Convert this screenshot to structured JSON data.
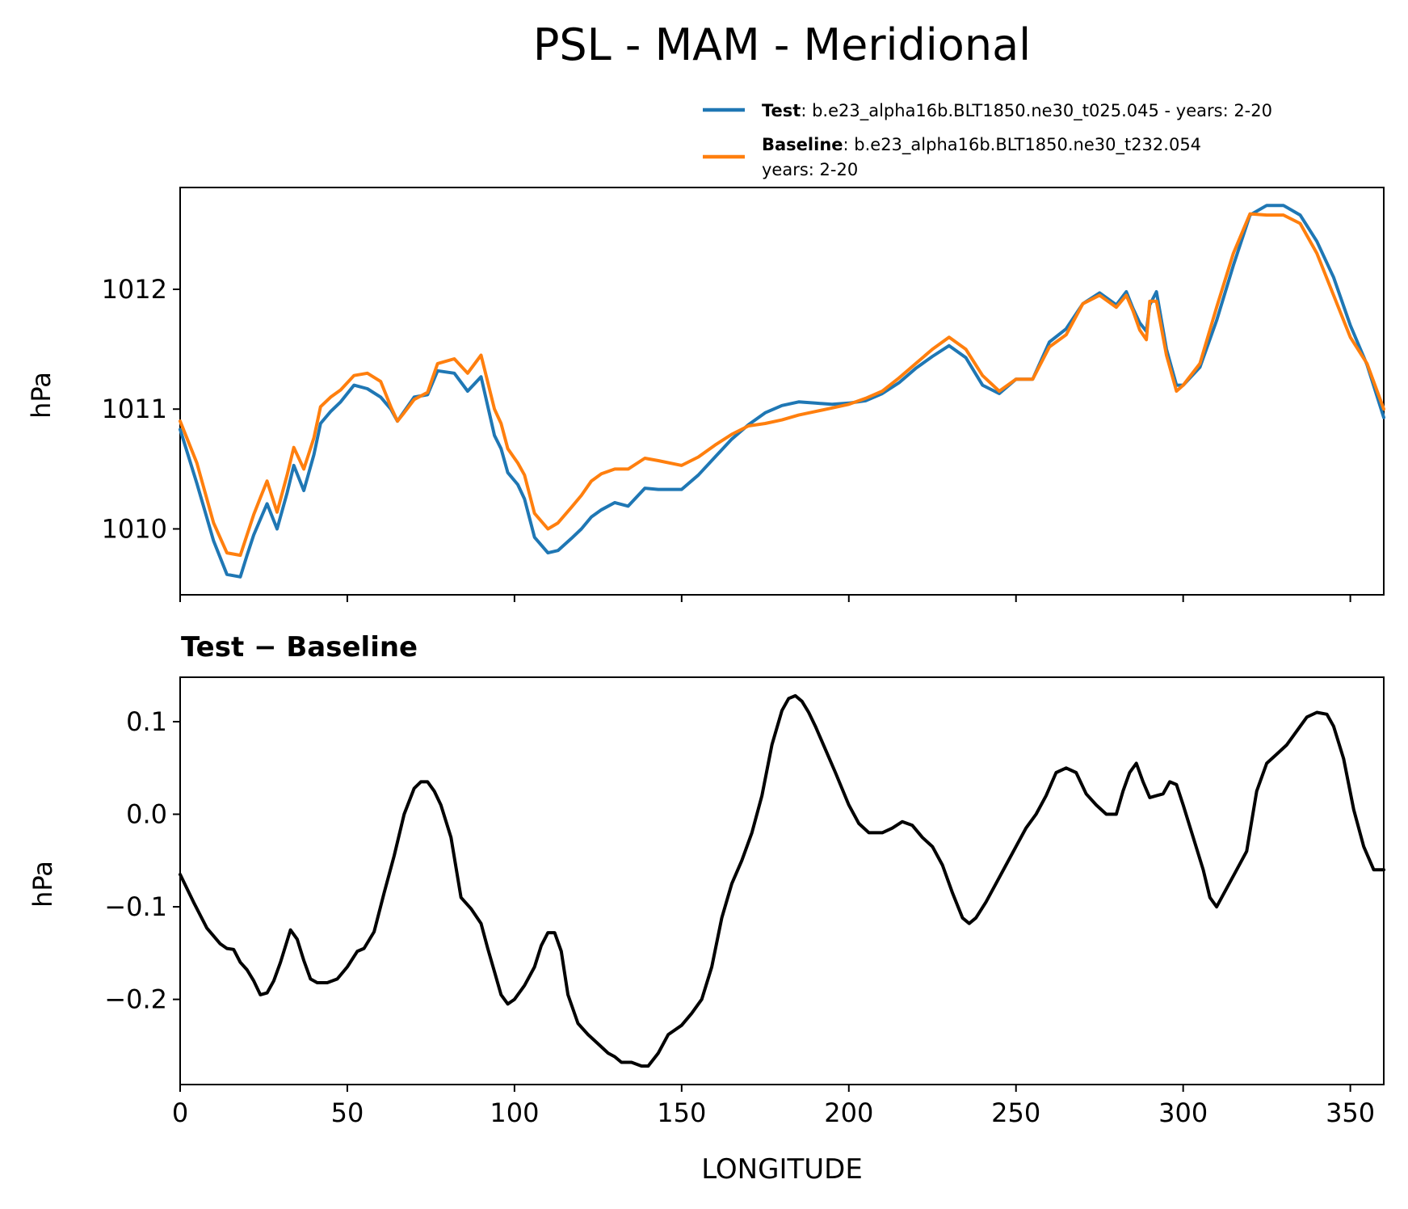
{
  "figure": {
    "title": "PSL - MAM - Meridional"
  },
  "legend": {
    "test_label": "Test",
    "test_desc": ": b.e23_alpha16b.BLT1850.ne30_t025.045 - years: 2-20",
    "baseline_label": "Baseline",
    "baseline_desc_line1": ": b.e23_alpha16b.BLT1850.ne30_t232.054",
    "baseline_desc_line2": "years: 2-20"
  },
  "colors": {
    "test": "#1f77b4",
    "baseline": "#ff7f0e",
    "difference": "#000000"
  },
  "chart_data": [
    {
      "type": "line",
      "title": "",
      "xlabel": "",
      "ylabel": "hPa",
      "xlim": [
        0,
        360
      ],
      "ylim": [
        1009.45,
        1012.85
      ],
      "yticks": [
        1010,
        1011,
        1012
      ],
      "yticklabels": [
        "1010",
        "1011",
        "1012"
      ],
      "xticks": [
        0,
        50,
        100,
        150,
        200,
        250,
        300,
        350
      ],
      "xticklabels_visible": false,
      "legend": "top-right, above axes",
      "series": [
        {
          "name": "Test",
          "x": [
            0,
            5,
            10,
            14,
            18,
            20,
            22,
            24,
            26,
            29,
            32,
            34,
            37,
            40,
            42,
            45,
            48,
            52,
            56,
            60,
            63,
            65,
            67,
            70,
            74,
            77,
            82,
            86,
            90,
            94,
            96,
            98,
            101,
            103,
            106,
            110,
            113,
            117,
            120,
            123,
            126,
            130,
            134,
            139,
            143,
            150,
            155,
            160,
            165,
            170,
            175,
            180,
            185,
            190,
            195,
            200,
            205,
            210,
            215,
            220,
            225,
            230,
            235,
            240,
            245,
            250,
            255,
            260,
            265,
            270,
            275,
            280,
            283,
            285,
            287,
            289,
            290,
            292,
            295,
            298,
            300,
            305,
            310,
            315,
            320,
            325,
            330,
            335,
            340,
            345,
            350,
            355,
            360
          ],
          "values": [
            1010.83,
            1010.38,
            1009.9,
            1009.62,
            1009.6,
            1009.78,
            1009.95,
            1010.08,
            1010.21,
            1010.0,
            1010.3,
            1010.53,
            1010.32,
            1010.62,
            1010.88,
            1010.98,
            1011.06,
            1011.2,
            1011.17,
            1011.1,
            1011.0,
            1010.9,
            1010.98,
            1011.1,
            1011.12,
            1011.32,
            1011.3,
            1011.15,
            1011.27,
            1010.78,
            1010.67,
            1010.47,
            1010.37,
            1010.25,
            1009.93,
            1009.8,
            1009.82,
            1009.92,
            1010.0,
            1010.1,
            1010.16,
            1010.22,
            1010.19,
            1010.34,
            1010.33,
            1010.33,
            1010.45,
            1010.6,
            1010.75,
            1010.87,
            1010.97,
            1011.03,
            1011.06,
            1011.05,
            1011.04,
            1011.05,
            1011.07,
            1011.13,
            1011.22,
            1011.34,
            1011.44,
            1011.53,
            1011.43,
            1011.2,
            1011.13,
            1011.25,
            1011.25,
            1011.56,
            1011.67,
            1011.88,
            1011.97,
            1011.87,
            1011.98,
            1011.84,
            1011.72,
            1011.65,
            1011.87,
            1011.98,
            1011.5,
            1011.2,
            1011.2,
            1011.35,
            1011.74,
            1012.2,
            1012.62,
            1012.7,
            1012.7,
            1012.62,
            1012.4,
            1012.1,
            1011.7,
            1011.37,
            1010.93
          ]
        },
        {
          "name": "Baseline",
          "x": [
            0,
            5,
            10,
            14,
            18,
            20,
            22,
            24,
            26,
            29,
            32,
            34,
            37,
            40,
            42,
            45,
            48,
            52,
            56,
            60,
            63,
            65,
            67,
            70,
            74,
            77,
            82,
            86,
            90,
            94,
            96,
            98,
            101,
            103,
            106,
            110,
            113,
            117,
            120,
            123,
            126,
            130,
            134,
            139,
            143,
            150,
            155,
            160,
            165,
            170,
            175,
            180,
            185,
            190,
            195,
            200,
            205,
            210,
            215,
            220,
            225,
            230,
            235,
            240,
            245,
            250,
            255,
            260,
            265,
            270,
            275,
            280,
            283,
            285,
            287,
            289,
            290,
            292,
            295,
            298,
            300,
            305,
            310,
            315,
            320,
            325,
            330,
            335,
            340,
            345,
            350,
            355,
            360
          ],
          "values": [
            1010.9,
            1010.55,
            1010.05,
            1009.8,
            1009.78,
            1009.95,
            1010.12,
            1010.26,
            1010.4,
            1010.14,
            1010.45,
            1010.68,
            1010.5,
            1010.76,
            1011.02,
            1011.1,
            1011.16,
            1011.28,
            1011.3,
            1011.23,
            1011.02,
            1010.9,
            1010.97,
            1011.08,
            1011.14,
            1011.38,
            1011.42,
            1011.3,
            1011.45,
            1011.0,
            1010.88,
            1010.67,
            1010.55,
            1010.45,
            1010.13,
            1010.0,
            1010.05,
            1010.18,
            1010.28,
            1010.4,
            1010.46,
            1010.5,
            1010.5,
            1010.59,
            1010.57,
            1010.53,
            1010.6,
            1010.7,
            1010.79,
            1010.86,
            1010.88,
            1010.91,
            1010.95,
            1010.98,
            1011.01,
            1011.04,
            1011.09,
            1011.15,
            1011.26,
            1011.38,
            1011.5,
            1011.6,
            1011.5,
            1011.28,
            1011.15,
            1011.25,
            1011.25,
            1011.52,
            1011.62,
            1011.88,
            1011.95,
            1011.85,
            1011.95,
            1011.82,
            1011.66,
            1011.58,
            1011.9,
            1011.9,
            1011.45,
            1011.15,
            1011.2,
            1011.38,
            1011.85,
            1012.3,
            1012.63,
            1012.62,
            1012.62,
            1012.55,
            1012.3,
            1011.95,
            1011.6,
            1011.38,
            1011.0
          ]
        }
      ]
    },
    {
      "type": "line",
      "title": "Test − Baseline",
      "xlabel": "LONGITUDE",
      "ylabel": "hPa",
      "xlim": [
        0,
        360
      ],
      "ylim": [
        -0.292,
        0.148
      ],
      "yticks": [
        -0.2,
        -0.1,
        0.0,
        0.1
      ],
      "yticklabels": [
        "−0.2",
        "−0.1",
        "0.0",
        "0.1"
      ],
      "xticks": [
        0,
        50,
        100,
        150,
        200,
        250,
        300,
        350
      ],
      "xticklabels": [
        "0",
        "50",
        "100",
        "150",
        "200",
        "250",
        "300",
        "350"
      ],
      "series": [
        {
          "name": "",
          "x": [
            0,
            4,
            8,
            12,
            14,
            16,
            18,
            20,
            22,
            24,
            26,
            28,
            30,
            33,
            35,
            37,
            39,
            41,
            44,
            47,
            50,
            53,
            55,
            58,
            61,
            64,
            67,
            70,
            72,
            74,
            76,
            78,
            81,
            84,
            87,
            90,
            92,
            94,
            96,
            98,
            100,
            103,
            106,
            108,
            110,
            112,
            114,
            116,
            119,
            122,
            125,
            128,
            130,
            132,
            135,
            138,
            140,
            143,
            146,
            150,
            153,
            156,
            159,
            162,
            165,
            168,
            171,
            174,
            177,
            180,
            182,
            184,
            186,
            188,
            190,
            193,
            196,
            200,
            203,
            206,
            210,
            213,
            216,
            219,
            222,
            225,
            228,
            231,
            234,
            236,
            238,
            241,
            244,
            247,
            250,
            253,
            256,
            259,
            262,
            265,
            268,
            271,
            274,
            277,
            280,
            282,
            284,
            286,
            288,
            290,
            292,
            294,
            296,
            298,
            300,
            303,
            306,
            308,
            310,
            313,
            316,
            319,
            322,
            325,
            328,
            331,
            334,
            337,
            340,
            343,
            345,
            348,
            351,
            354,
            357,
            360
          ],
          "values": [
            -0.065,
            -0.095,
            -0.123,
            -0.14,
            -0.145,
            -0.146,
            -0.16,
            -0.168,
            -0.18,
            -0.195,
            -0.193,
            -0.18,
            -0.16,
            -0.125,
            -0.135,
            -0.158,
            -0.178,
            -0.182,
            -0.182,
            -0.178,
            -0.165,
            -0.148,
            -0.145,
            -0.127,
            -0.085,
            -0.045,
            0.0,
            0.028,
            0.035,
            0.035,
            0.025,
            0.01,
            -0.025,
            -0.09,
            -0.102,
            -0.118,
            -0.145,
            -0.17,
            -0.195,
            -0.205,
            -0.2,
            -0.185,
            -0.165,
            -0.142,
            -0.128,
            -0.128,
            -0.148,
            -0.195,
            -0.226,
            -0.238,
            -0.248,
            -0.258,
            -0.262,
            -0.268,
            -0.268,
            -0.272,
            -0.272,
            -0.258,
            -0.238,
            -0.228,
            -0.215,
            -0.2,
            -0.165,
            -0.112,
            -0.075,
            -0.05,
            -0.02,
            0.02,
            0.075,
            0.112,
            0.125,
            0.128,
            0.122,
            0.11,
            0.095,
            0.07,
            0.045,
            0.01,
            -0.01,
            -0.02,
            -0.02,
            -0.015,
            -0.008,
            -0.012,
            -0.025,
            -0.035,
            -0.055,
            -0.085,
            -0.112,
            -0.118,
            -0.112,
            -0.095,
            -0.075,
            -0.055,
            -0.035,
            -0.015,
            0.0,
            0.02,
            0.045,
            0.05,
            0.045,
            0.022,
            0.01,
            0.0,
            0.0,
            0.025,
            0.045,
            0.055,
            0.035,
            0.018,
            0.02,
            0.022,
            0.035,
            0.032,
            0.01,
            -0.025,
            -0.06,
            -0.09,
            -0.1,
            -0.08,
            -0.06,
            -0.04,
            0.025,
            0.055,
            0.065,
            0.075,
            0.09,
            0.105,
            0.11,
            0.108,
            0.095,
            0.06,
            0.005,
            -0.035,
            -0.06,
            -0.06
          ]
        }
      ]
    }
  ]
}
